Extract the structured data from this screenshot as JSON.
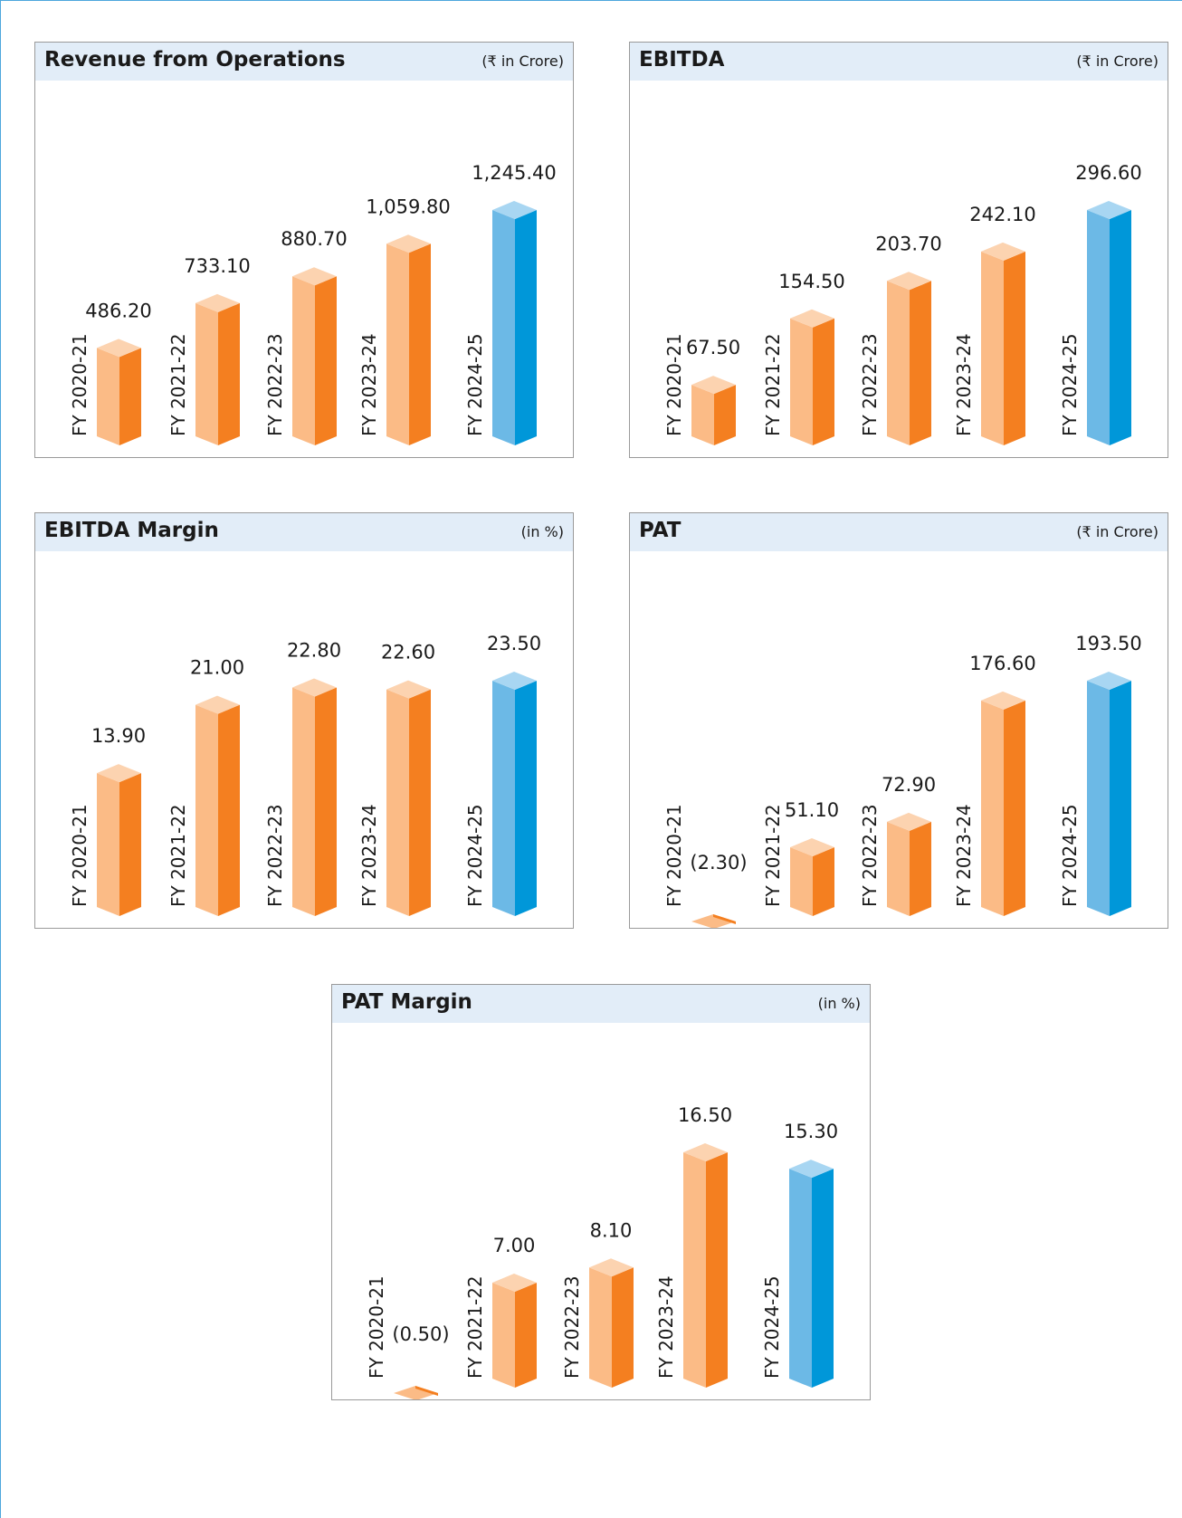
{
  "colors": {
    "orange_front": "#fbbb86",
    "orange_side": "#f47f20",
    "orange_top": "#fcd3b0",
    "blue_front": "#6cb9e6",
    "blue_side": "#0097d9",
    "blue_top": "#a8d6f2",
    "header_bg": "#e2edf8",
    "border": "#9a9a9a",
    "page_border": "#4da6dd"
  },
  "chart_data": [
    {
      "type": "bar",
      "title": "Revenue from Operations",
      "unit": "(₹ in Crore)",
      "categories": [
        "FY 2020-21",
        "FY 2021-22",
        "FY 2022-23",
        "FY 2023-24",
        "FY 2024-25"
      ],
      "values": [
        486.2,
        733.1,
        880.7,
        1059.8,
        1245.4
      ],
      "value_labels": [
        "486.20",
        "733.10",
        "880.70",
        "1,059.80",
        "1,245.40"
      ],
      "highlight_last": true
    },
    {
      "type": "bar",
      "title": "EBITDA",
      "unit": "(₹ in Crore)",
      "categories": [
        "FY 2020-21",
        "FY 2021-22",
        "FY 2022-23",
        "FY 2023-24",
        "FY 2024-25"
      ],
      "values": [
        67.5,
        154.5,
        203.7,
        242.1,
        296.6
      ],
      "value_labels": [
        "67.50",
        "154.50",
        "203.70",
        "242.10",
        "296.60"
      ],
      "highlight_last": true
    },
    {
      "type": "bar",
      "title": "EBITDA Margin",
      "unit": "(in %)",
      "categories": [
        "FY 2020-21",
        "FY 2021-22",
        "FY 2022-23",
        "FY 2023-24",
        "FY 2024-25"
      ],
      "values": [
        13.9,
        21.0,
        22.8,
        22.6,
        23.5
      ],
      "value_labels": [
        "13.90",
        "21.00",
        "22.80",
        "22.60",
        "23.50"
      ],
      "highlight_last": true
    },
    {
      "type": "bar",
      "title": "PAT",
      "unit": "(₹ in Crore)",
      "categories": [
        "FY 2020-21",
        "FY 2021-22",
        "FY 2022-23",
        "FY 2023-24",
        "FY 2024-25"
      ],
      "values": [
        -2.3,
        51.1,
        72.9,
        176.6,
        193.5
      ],
      "value_labels": [
        "(2.30)",
        "51.10",
        "72.90",
        "176.60",
        "193.50"
      ],
      "highlight_last": true
    },
    {
      "type": "bar",
      "title": "PAT Margin",
      "unit": "(in %)",
      "categories": [
        "FY 2020-21",
        "FY 2021-22",
        "FY 2022-23",
        "FY 2023-24",
        "FY 2024-25"
      ],
      "values": [
        -0.5,
        7.0,
        8.1,
        16.5,
        15.3
      ],
      "value_labels": [
        "(0.50)",
        "7.00",
        "8.10",
        "16.50",
        "15.30"
      ],
      "highlight_last": true
    }
  ]
}
